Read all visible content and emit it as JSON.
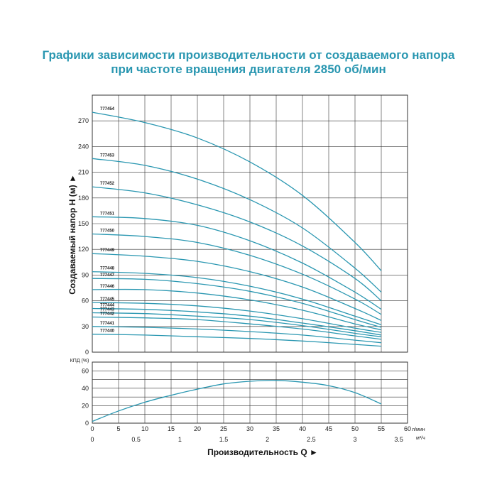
{
  "title_line1": "Графики зависимости производительности от создаваемого напора",
  "title_line2": "при частоте вращения двигателя 2850 об/мин",
  "chart_data": [
    {
      "type": "line",
      "ylabel": "Создаваемый напор H (м) ►",
      "ylim": [
        0,
        300
      ],
      "yticks": [
        "0",
        "30",
        "60",
        "90",
        "120",
        "150",
        "180",
        "210",
        "240",
        "270"
      ],
      "xlim": [
        0,
        60
      ],
      "grid": true,
      "series": [
        {
          "name": "777454",
          "x": [
            0,
            10,
            20,
            30,
            40,
            50,
            55
          ],
          "values": [
            280,
            268,
            250,
            222,
            183,
            128,
            95
          ]
        },
        {
          "name": "777453",
          "x": [
            0,
            10,
            20,
            30,
            40,
            50,
            55
          ],
          "values": [
            226,
            218,
            202,
            178,
            145,
            98,
            70
          ]
        },
        {
          "name": "777452",
          "x": [
            0,
            10,
            20,
            30,
            40,
            50,
            55
          ],
          "values": [
            193,
            186,
            172,
            152,
            124,
            86,
            60
          ]
        },
        {
          "name": "777451",
          "x": [
            0,
            10,
            20,
            30,
            40,
            50,
            55
          ],
          "values": [
            158,
            156,
            148,
            130,
            104,
            70,
            50
          ]
        },
        {
          "name": "777450",
          "x": [
            0,
            10,
            20,
            30,
            40,
            50,
            55
          ],
          "values": [
            138,
            135,
            128,
            113,
            91,
            62,
            44
          ]
        },
        {
          "name": "777449",
          "x": [
            0,
            10,
            20,
            30,
            40,
            50,
            55
          ],
          "values": [
            115,
            112,
            106,
            94,
            76,
            51,
            37
          ]
        },
        {
          "name": "777448",
          "x": [
            0,
            10,
            20,
            30,
            40,
            50,
            55
          ],
          "values": [
            94,
            92,
            87,
            77,
            62,
            42,
            32
          ]
        },
        {
          "name": "777447",
          "x": [
            0,
            10,
            20,
            30,
            40,
            50,
            55
          ],
          "values": [
            86,
            85,
            80,
            71,
            57,
            38,
            29
          ]
        },
        {
          "name": "777446",
          "x": [
            0,
            10,
            20,
            30,
            40,
            50,
            55
          ],
          "values": [
            73,
            73,
            69,
            61,
            49,
            33,
            26
          ]
        },
        {
          "name": "777445",
          "x": [
            0,
            10,
            20,
            30,
            40,
            50,
            55
          ],
          "values": [
            58,
            57,
            54,
            48,
            39,
            28,
            23
          ]
        },
        {
          "name": "777444",
          "x": [
            0,
            10,
            20,
            30,
            40,
            50,
            55
          ],
          "values": [
            51,
            50,
            47,
            42,
            34,
            25,
            20
          ]
        },
        {
          "name": "777443",
          "x": [
            0,
            10,
            20,
            30,
            40,
            50,
            55
          ],
          "values": [
            46,
            45,
            42,
            38,
            31,
            22,
            18
          ]
        },
        {
          "name": "777442",
          "x": [
            0,
            10,
            20,
            30,
            40,
            50,
            55
          ],
          "values": [
            41,
            40,
            38,
            33,
            27,
            19,
            15
          ]
        },
        {
          "name": "777441",
          "x": [
            0,
            10,
            20,
            30,
            40,
            50,
            55
          ],
          "values": [
            30,
            29,
            27,
            24,
            20,
            14,
            11
          ]
        },
        {
          "name": "777440",
          "x": [
            0,
            10,
            20,
            30,
            40,
            50,
            55
          ],
          "values": [
            21,
            20,
            18,
            16,
            13,
            9,
            7
          ]
        }
      ]
    },
    {
      "type": "line",
      "ylabel": "КПД (%)",
      "ylim": [
        0,
        70
      ],
      "yticks": [
        "0",
        "20",
        "40",
        "60"
      ],
      "xlim": [
        0,
        60
      ],
      "grid": true,
      "series": [
        {
          "x": [
            0,
            5,
            10,
            15,
            20,
            25,
            30,
            35,
            40,
            45,
            50,
            55
          ],
          "values": [
            2,
            14,
            24,
            32,
            39,
            45,
            48,
            49,
            47,
            43,
            35,
            22
          ]
        }
      ]
    }
  ],
  "x_axis": {
    "lmin_ticks": [
      "0",
      "5",
      "10",
      "15",
      "20",
      "25",
      "30",
      "35",
      "40",
      "45",
      "50",
      "55",
      "60"
    ],
    "lmin_unit": "л/мин",
    "m3h_ticks": [
      "0",
      "0.5",
      "1",
      "1.5",
      "2",
      "2.5",
      "3",
      "3.5"
    ],
    "m3h_unit": "м³/ч",
    "title": "Производительность Q ►"
  },
  "colors": {
    "curve": "#2a97b1",
    "title": "#2a97b1",
    "grid": "#333333"
  }
}
